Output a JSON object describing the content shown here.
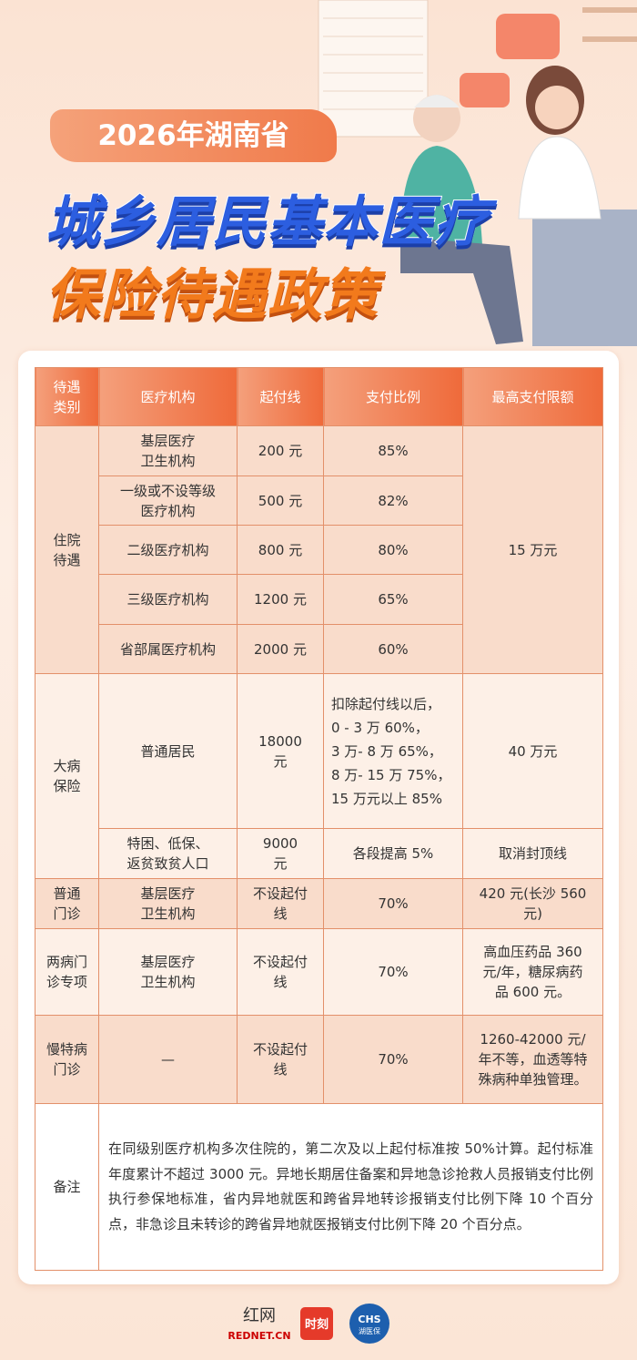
{
  "header": {
    "year_label": "2026年湖南省",
    "title_line1": "城乡居民基本医疗",
    "title_line2": "保险待遇政策"
  },
  "table": {
    "columns": [
      [
        "待遇",
        "类别"
      ],
      [
        "医疗机构"
      ],
      [
        "起付线"
      ],
      [
        "支付比例"
      ],
      [
        "最高支付限额"
      ]
    ],
    "groups": [
      {
        "category": [
          "住院",
          "待遇"
        ],
        "max": [
          "15 万元"
        ],
        "rows": [
          {
            "institution": [
              "基层医疗",
              "卫生机构"
            ],
            "threshold": [
              "200 元"
            ],
            "ratio": [
              "85%"
            ]
          },
          {
            "institution": [
              "一级或不设等级",
              "医疗机构"
            ],
            "threshold": [
              "500 元"
            ],
            "ratio": [
              "82%"
            ]
          },
          {
            "institution": [
              "二级医疗机构"
            ],
            "threshold": [
              "800 元"
            ],
            "ratio": [
              "80%"
            ]
          },
          {
            "institution": [
              "三级医疗机构"
            ],
            "threshold": [
              "1200 元"
            ],
            "ratio": [
              "65%"
            ]
          },
          {
            "institution": [
              "省部属医疗机构"
            ],
            "threshold": [
              "2000 元"
            ],
            "ratio": [
              "60%"
            ]
          }
        ]
      },
      {
        "category": [
          "大病",
          "保险"
        ],
        "rows": [
          {
            "institution": [
              "普通居民"
            ],
            "threshold": [
              "18000",
              "元"
            ],
            "ratio": [
              "扣除起付线以后，",
              "0 - 3 万  60%，",
              "3 万- 8 万  65%，",
              "8 万- 15 万  75%，",
              "15 万元以上 85%"
            ],
            "max": [
              "40 万元"
            ]
          },
          {
            "institution": [
              "特困、低保、",
              "返贫致贫人口"
            ],
            "threshold": [
              "9000",
              "元"
            ],
            "ratio": [
              "各段提高 5%"
            ],
            "max": [
              "取消封顶线"
            ]
          }
        ]
      },
      {
        "category": [
          "普通",
          "门诊"
        ],
        "rows": [
          {
            "institution": [
              "基层医疗",
              "卫生机构"
            ],
            "threshold": [
              "不设起付",
              "线"
            ],
            "ratio": [
              "70%"
            ],
            "max": [
              "420 元(长沙 560",
              "元)"
            ]
          }
        ]
      },
      {
        "category": [
          "两病门",
          "诊专项"
        ],
        "rows": [
          {
            "institution": [
              "基层医疗",
              "卫生机构"
            ],
            "threshold": [
              "不设起付",
              "线"
            ],
            "ratio": [
              "70%"
            ],
            "max": [
              "高血压药品 360",
              "元/年，糖尿病药",
              "品 600 元。"
            ]
          }
        ]
      },
      {
        "category": [
          "慢特病",
          "门诊"
        ],
        "rows": [
          {
            "institution": [
              "—"
            ],
            "threshold": [
              "不设起付",
              "线"
            ],
            "ratio": [
              "70%"
            ],
            "max": [
              "1260-42000 元/",
              "年不等，血透等特",
              "殊病种单独管理。"
            ]
          }
        ]
      }
    ],
    "note": {
      "label": "备注",
      "text": "在同级别医疗机构多次住院的，第二次及以上起付标准按 50%计算。起付标准年度累计不超过 3000 元。异地长期居住备案和异地急诊抢救人员报销支付比例执行参保地标准，省内异地就医和跨省异地转诊报销支付比例下降 10 个百分点，非急诊且未转诊的跨省异地就医报销支付比例下降 20 个百分点。"
    }
  },
  "footer": {
    "rednet_cn": "红网",
    "rednet_en": "REDNET.CN",
    "shike": "时刻",
    "chs": "CHS",
    "chs_name": "湖医保"
  }
}
